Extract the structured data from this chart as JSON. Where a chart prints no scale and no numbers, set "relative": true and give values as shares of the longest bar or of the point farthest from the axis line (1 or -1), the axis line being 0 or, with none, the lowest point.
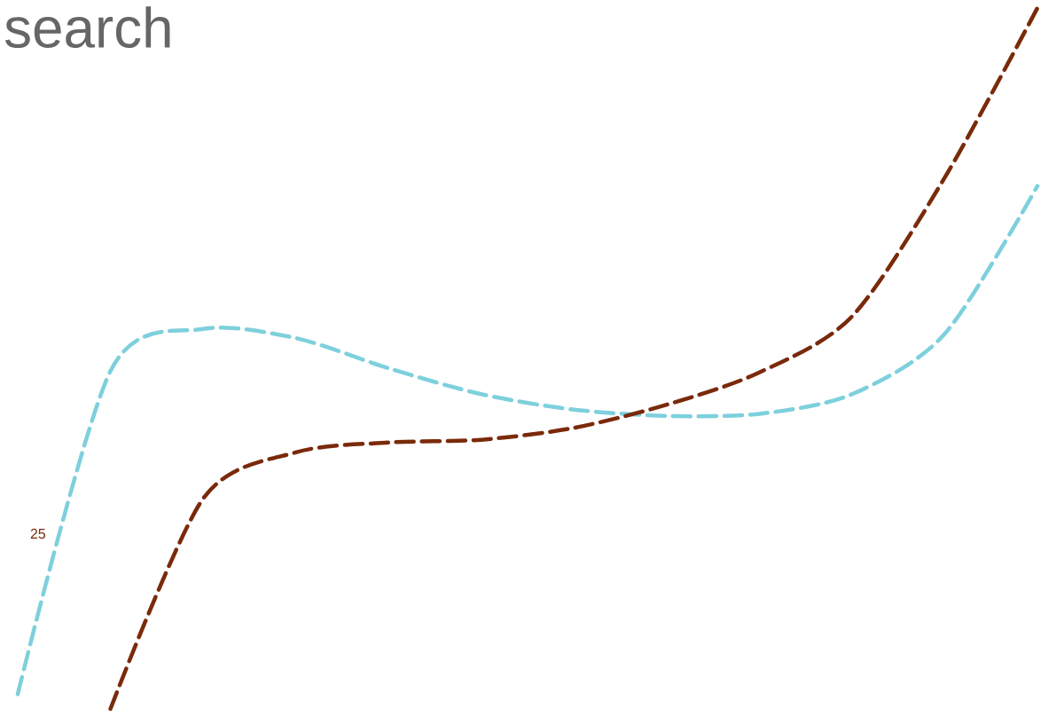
{
  "chart_data": {
    "type": "line",
    "title": "search",
    "relative": true,
    "line_style": "dashed",
    "categories": [
      null,
      null,
      null,
      null,
      null,
      null,
      null,
      null,
      null,
      null,
      null,
      null
    ],
    "series": [
      {
        "color": "#7dd0dc",
        "values": [
          0.021,
          0.482,
          0.542,
          0.529,
          0.486,
          0.449,
          0.427,
          0.418,
          0.421,
          0.449,
          0.535,
          0.746
        ]
      },
      {
        "color": "#7a2a0a",
        "values": [
          null,
          0,
          0.3,
          0.366,
          0.38,
          0.384,
          0.401,
          0.434,
          0.48,
          0.56,
          0.758,
          1.0
        ]
      }
    ],
    "annotations": [
      "25"
    ]
  }
}
